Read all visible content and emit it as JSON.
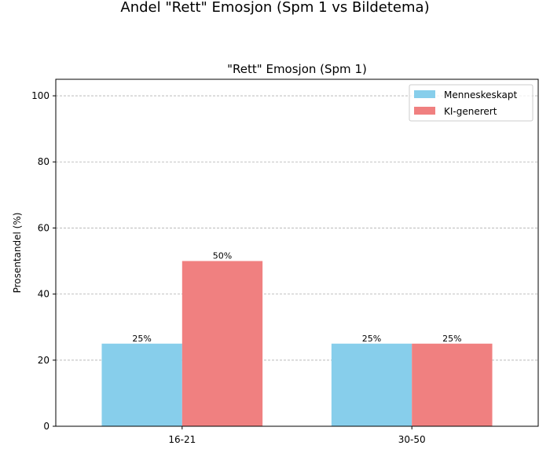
{
  "chart_data": {
    "type": "bar",
    "suptitle": "Andel \"Rett\" Emosjon (Spm 1 vs Bildetema)",
    "title": "\"Rett\" Emosjon (Spm 1)",
    "xlabel": "",
    "ylabel": "Prosentandel (%)",
    "categories": [
      "16-21",
      "30-50"
    ],
    "series": [
      {
        "name": "Menneskeskapt",
        "values": [
          25,
          25
        ],
        "color": "#87CEEB",
        "labels": [
          "25%",
          "25%"
        ]
      },
      {
        "name": "KI-generert",
        "values": [
          50,
          25
        ],
        "color": "#F08080",
        "labels": [
          "50%",
          "25%"
        ]
      }
    ],
    "ylim": [
      0,
      105
    ],
    "yticks": [
      0,
      20,
      40,
      60,
      80,
      100
    ],
    "grid": "y-dashed",
    "legend_position": "top-right"
  }
}
